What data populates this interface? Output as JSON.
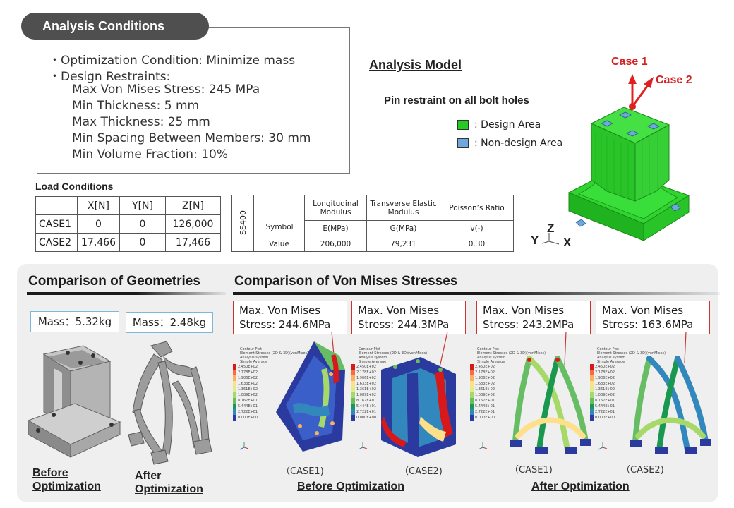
{
  "analysis_conditions": {
    "header": "Analysis Conditions",
    "lines": [
      "・Optimization Condition: Minimize mass",
      "・Design Restraints:",
      "Max Von Mises Stress: 245 MPa",
      "Min Thickness: 5 mm",
      "Max Thickness: 25 mm",
      "Min Spacing Between Members: 30 mm",
      "Min Volume Fraction: 10%"
    ]
  },
  "load_conditions": {
    "title": "Load Conditions",
    "headers": [
      "",
      "X[N]",
      "Y[N]",
      "Z[N]"
    ],
    "rows": [
      [
        "CASE1",
        "0",
        "0",
        "126,000"
      ],
      [
        "CASE2",
        "17,466",
        "0",
        "17,466"
      ]
    ]
  },
  "material": {
    "name": "SS400",
    "headers": [
      "Longitudinal Modulus",
      "Transverse Elastic Modulus",
      "Poisson’s Ratio"
    ],
    "symbol_label": "Symbol",
    "symbols": [
      "E(MPa)",
      "G(MPa)",
      "v(-)"
    ],
    "value_label": "Value",
    "values": [
      "206,000",
      "79,231",
      "0.30"
    ]
  },
  "analysis_model": {
    "title": "Analysis Model",
    "restraint": "Pin restraint on all bolt holes",
    "legend": [
      {
        "label": ": Design Area",
        "color": "#22cc22"
      },
      {
        "label": ": Non-design Area",
        "color": "#6fa8dc"
      }
    ],
    "case1": "Case 1",
    "case2": "Case 2",
    "axes": {
      "y": "Y",
      "z": "Z",
      "x": "X"
    }
  },
  "geometry": {
    "title": "Comparison of Geometries",
    "mass_before": "Mass：5.32kg",
    "mass_after": "Mass：2.48kg",
    "before_label_1": "Before",
    "before_label_2": "Optimization",
    "after_label_1": "After",
    "after_label_2": "Optimization"
  },
  "stress": {
    "title": "Comparison of Von Mises Stresses",
    "boxes": [
      {
        "line1": "Max. Von Mises",
        "line2": "Stress: 244.6MPa"
      },
      {
        "line1": "Max. Von Mises",
        "line2": "Stress: 244.3MPa"
      },
      {
        "line1": "Max. Von Mises",
        "line2": "Stress: 243.2MPa"
      },
      {
        "line1": "Max. Von Mises",
        "line2": "Stress: 163.6MPa"
      }
    ],
    "captions": [
      "（CASE1)",
      "（CASE2)",
      "（CASE1)",
      "（CASE2)"
    ],
    "before_label": "Before Optimization",
    "after_label": "After Optimization",
    "contour_header": [
      "Contour Plot",
      "Element Stresses (2D & 3D)(vonMises)",
      "Analysis system",
      "Simple Average"
    ],
    "contour_levels": [
      "2.450E+02",
      "2.178E+02",
      "1.906E+02",
      "1.633E+02",
      "1.361E+02",
      "1.089E+02",
      "8.167E+01",
      "5.444E+01",
      "2.722E+01",
      "0.000E+00"
    ],
    "contour_colors": [
      "#d7191c",
      "#f46d43",
      "#fdae61",
      "#fee08b",
      "#d9ef8b",
      "#a6d96a",
      "#66bd63",
      "#1a9850",
      "#3288bd",
      "#2b3a9e"
    ]
  }
}
